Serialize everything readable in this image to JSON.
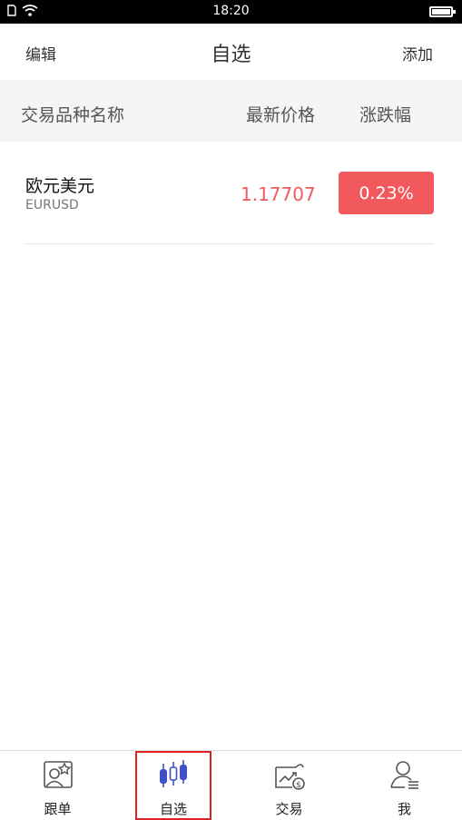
{
  "status_bar": {
    "time": "18:20"
  },
  "header": {
    "left_label": "编辑",
    "title": "自选",
    "right_label": "添加"
  },
  "table_header": {
    "col_name": "交易品种名称",
    "col_price": "最新价格",
    "col_change": "涨跌幅"
  },
  "watchlist": [
    {
      "name": "欧元美元",
      "code": "EURUSD",
      "price": "1.17707",
      "change": "0.23%",
      "change_color": "#f1595d"
    }
  ],
  "tabbar": {
    "tabs": [
      {
        "label": "跟单",
        "icon": "follow-icon"
      },
      {
        "label": "自选",
        "icon": "candlestick-icon",
        "active": true
      },
      {
        "label": "交易",
        "icon": "trade-icon"
      },
      {
        "label": "我",
        "icon": "user-icon"
      }
    ]
  },
  "colors": {
    "accent_red": "#f1595d",
    "active_icon": "#3f4fc6",
    "highlight_box": "#e02222"
  }
}
